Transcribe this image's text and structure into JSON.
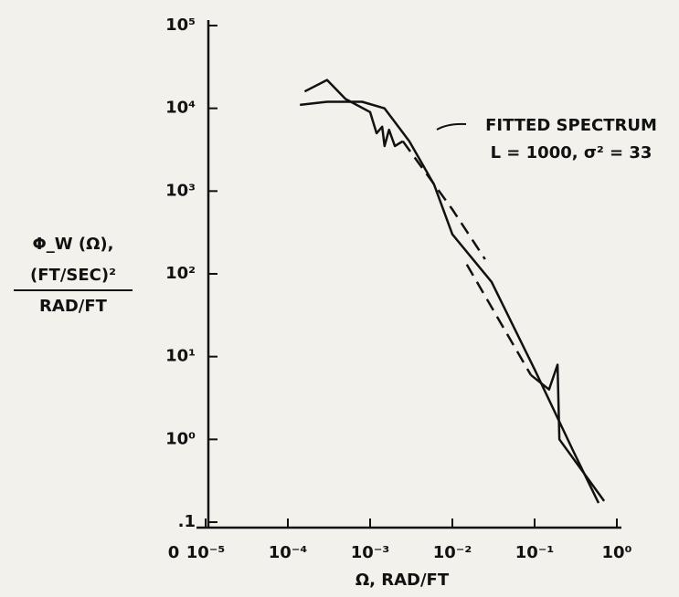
{
  "chart_data": {
    "type": "line",
    "xlabel": "Ω, RAD/FT",
    "ylabel": [
      "Φ_W (Ω),",
      "(FT/SEC)²",
      "RAD/FT"
    ],
    "origin_label": "0",
    "annotation": "L = 1000, σ² = 33",
    "xscale": "log",
    "yscale": "log",
    "xlim": [
      1e-05,
      1
    ],
    "ylim": [
      0.1,
      100000
    ],
    "xticks": [
      {
        "value": 1e-05,
        "label": "10⁻⁵"
      },
      {
        "value": 0.0001,
        "label": "10⁻⁴"
      },
      {
        "value": 0.001,
        "label": "10⁻³"
      },
      {
        "value": 0.01,
        "label": "10⁻²"
      },
      {
        "value": 0.1,
        "label": "10⁻¹"
      },
      {
        "value": 1,
        "label": "10⁰"
      }
    ],
    "yticks": [
      {
        "value": 0.1,
        "label": ".1"
      },
      {
        "value": 1,
        "label": "10⁰"
      },
      {
        "value": 10,
        "label": "10¹"
      },
      {
        "value": 100,
        "label": "10²"
      },
      {
        "value": 1000,
        "label": "10³"
      },
      {
        "value": 10000,
        "label": "10⁴"
      },
      {
        "value": 100000,
        "label": "10⁵"
      }
    ],
    "grid": false,
    "series": [
      {
        "name": "FITTED SPECTRUM",
        "color": "#111111",
        "dash": false,
        "x": [
          0.00014,
          0.0003,
          0.0008,
          0.0015,
          0.003,
          0.006,
          0.01,
          0.03,
          0.1,
          0.3,
          0.6
        ],
        "values": [
          11000,
          12000,
          12000,
          10000,
          4000,
          1200,
          300,
          80,
          7,
          0.7,
          0.17
        ]
      },
      {
        "color": "#111111",
        "dash": false,
        "x": [
          0.00016,
          0.0003,
          0.0005,
          0.001,
          0.0012,
          0.0014,
          0.0015,
          0.0017,
          0.002,
          0.0025
        ],
        "values": [
          16000,
          22000,
          13000,
          9000,
          5000,
          6000,
          3500,
          5500,
          3500,
          4000
        ]
      },
      {
        "color": "#111111",
        "dash": true,
        "x": [
          0.0025,
          0.01,
          0.025
        ],
        "values": [
          4000,
          600,
          150
        ]
      },
      {
        "color": "#111111",
        "dash": true,
        "x": [
          0.015,
          0.09
        ],
        "values": [
          130,
          6
        ]
      },
      {
        "color": "#111111",
        "dash": false,
        "x": [
          0.09,
          0.15,
          0.19,
          0.2,
          0.7
        ],
        "values": [
          6,
          4,
          8,
          1,
          0.18
        ]
      }
    ]
  }
}
